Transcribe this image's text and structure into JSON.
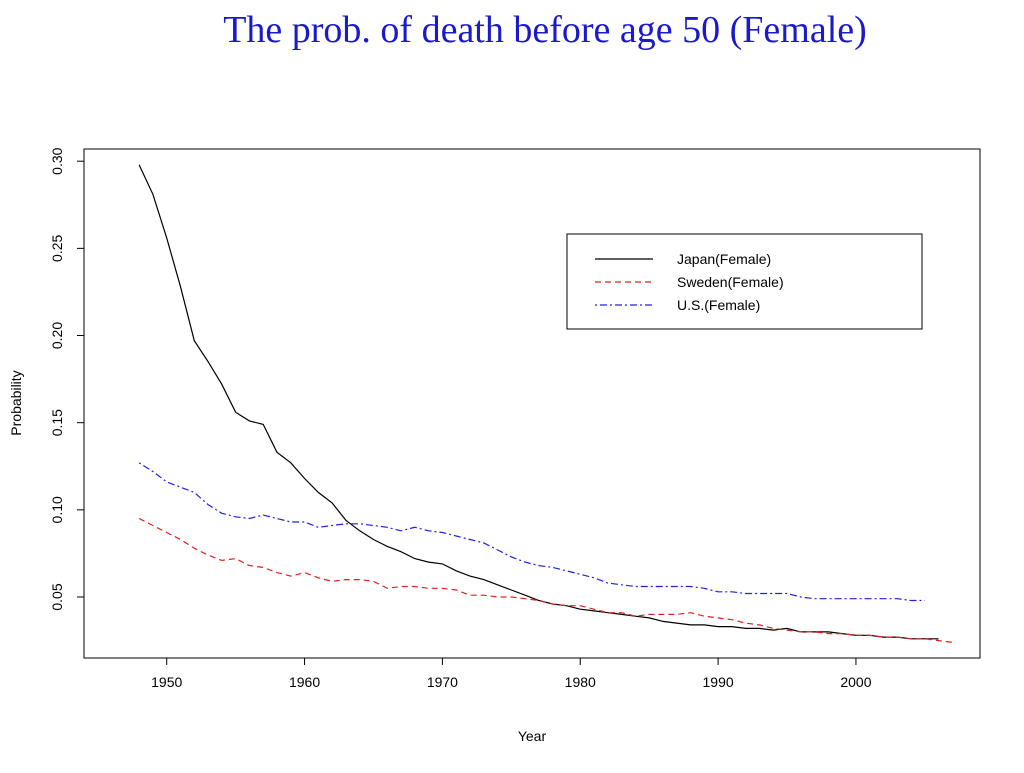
{
  "slide": {
    "title": "The prob. of death before age 50 (Female)"
  },
  "chart_data": {
    "type": "line",
    "title": "",
    "xlabel": "Year",
    "ylabel": "Probability",
    "xlim": [
      1944,
      2009
    ],
    "ylim": [
      0.015,
      0.307
    ],
    "x_ticks": [
      1950,
      1960,
      1970,
      1980,
      1990,
      2000
    ],
    "y_ticks": [
      0.05,
      0.1,
      0.15,
      0.2,
      0.25,
      0.3
    ],
    "legend_position": "top-right",
    "series": [
      {
        "name": "Japan(Female)",
        "color": "#000000",
        "dash": "solid",
        "x": [
          1948,
          1949,
          1950,
          1951,
          1952,
          1953,
          1954,
          1955,
          1956,
          1957,
          1958,
          1959,
          1960,
          1961,
          1962,
          1963,
          1964,
          1965,
          1966,
          1967,
          1968,
          1969,
          1970,
          1971,
          1972,
          1973,
          1974,
          1975,
          1976,
          1977,
          1978,
          1979,
          1980,
          1981,
          1982,
          1983,
          1984,
          1985,
          1986,
          1987,
          1988,
          1989,
          1990,
          1991,
          1992,
          1993,
          1994,
          1995,
          1996,
          1997,
          1998,
          1999,
          2000,
          2001,
          2002,
          2003,
          2004,
          2005,
          2006
        ],
        "y": [
          0.298,
          0.281,
          0.256,
          0.228,
          0.197,
          0.185,
          0.172,
          0.156,
          0.151,
          0.149,
          0.133,
          0.127,
          0.118,
          0.11,
          0.104,
          0.094,
          0.088,
          0.083,
          0.079,
          0.076,
          0.072,
          0.07,
          0.069,
          0.065,
          0.062,
          0.06,
          0.057,
          0.054,
          0.051,
          0.048,
          0.046,
          0.045,
          0.043,
          0.042,
          0.041,
          0.04,
          0.039,
          0.038,
          0.036,
          0.035,
          0.034,
          0.034,
          0.033,
          0.033,
          0.032,
          0.032,
          0.031,
          0.032,
          0.03,
          0.03,
          0.03,
          0.029,
          0.028,
          0.028,
          0.027,
          0.027,
          0.026,
          0.026,
          0.026
        ]
      },
      {
        "name": "Sweden(Female)",
        "color": "#e02020",
        "dash": "dashed",
        "x": [
          1948,
          1949,
          1950,
          1951,
          1952,
          1953,
          1954,
          1955,
          1956,
          1957,
          1958,
          1959,
          1960,
          1961,
          1962,
          1963,
          1964,
          1965,
          1966,
          1967,
          1968,
          1969,
          1970,
          1971,
          1972,
          1973,
          1974,
          1975,
          1976,
          1977,
          1978,
          1979,
          1980,
          1981,
          1982,
          1983,
          1984,
          1985,
          1986,
          1987,
          1988,
          1989,
          1990,
          1991,
          1992,
          1993,
          1994,
          1995,
          1996,
          1997,
          1998,
          1999,
          2000,
          2001,
          2002,
          2003,
          2004,
          2005,
          2006,
          2007
        ],
        "y": [
          0.095,
          0.091,
          0.087,
          0.083,
          0.078,
          0.074,
          0.071,
          0.072,
          0.068,
          0.067,
          0.064,
          0.062,
          0.064,
          0.061,
          0.059,
          0.06,
          0.06,
          0.059,
          0.055,
          0.056,
          0.056,
          0.055,
          0.055,
          0.054,
          0.051,
          0.051,
          0.05,
          0.05,
          0.049,
          0.048,
          0.046,
          0.045,
          0.045,
          0.043,
          0.041,
          0.041,
          0.039,
          0.04,
          0.04,
          0.04,
          0.041,
          0.039,
          0.038,
          0.037,
          0.035,
          0.034,
          0.032,
          0.031,
          0.03,
          0.03,
          0.029,
          0.029,
          0.028,
          0.028,
          0.027,
          0.027,
          0.026,
          0.026,
          0.025,
          0.024
        ]
      },
      {
        "name": "U.S.(Female)",
        "color": "#2020e0",
        "dash": "dotdash",
        "x": [
          1948,
          1949,
          1950,
          1951,
          1952,
          1953,
          1954,
          1955,
          1956,
          1957,
          1958,
          1959,
          1960,
          1961,
          1962,
          1963,
          1964,
          1965,
          1966,
          1967,
          1968,
          1969,
          1970,
          1971,
          1972,
          1973,
          1974,
          1975,
          1976,
          1977,
          1978,
          1979,
          1980,
          1981,
          1982,
          1983,
          1984,
          1985,
          1986,
          1987,
          1988,
          1989,
          1990,
          1991,
          1992,
          1993,
          1994,
          1995,
          1996,
          1997,
          1998,
          1999,
          2000,
          2001,
          2002,
          2003,
          2004,
          2005
        ],
        "y": [
          0.127,
          0.122,
          0.116,
          0.113,
          0.11,
          0.103,
          0.098,
          0.096,
          0.095,
          0.097,
          0.095,
          0.093,
          0.093,
          0.09,
          0.091,
          0.092,
          0.092,
          0.091,
          0.09,
          0.088,
          0.09,
          0.088,
          0.087,
          0.085,
          0.083,
          0.081,
          0.077,
          0.073,
          0.07,
          0.068,
          0.067,
          0.065,
          0.063,
          0.061,
          0.058,
          0.057,
          0.056,
          0.056,
          0.056,
          0.056,
          0.056,
          0.055,
          0.053,
          0.053,
          0.052,
          0.052,
          0.052,
          0.052,
          0.05,
          0.049,
          0.049,
          0.049,
          0.049,
          0.049,
          0.049,
          0.049,
          0.048,
          0.048
        ]
      }
    ]
  }
}
